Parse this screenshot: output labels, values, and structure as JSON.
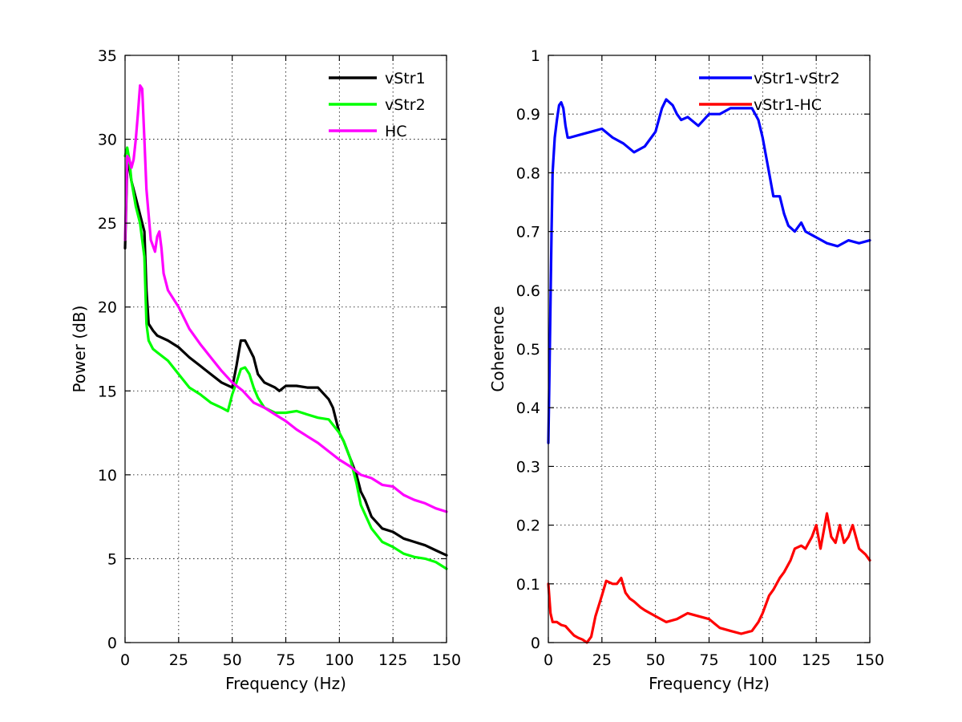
{
  "colors": {
    "vStr1": "#000000",
    "vStr2": "#00ff00",
    "HC": "#ff00ff",
    "vStr1-vStr2": "#0000ff",
    "vStr1-HC": "#ff0000"
  },
  "chart_data": [
    {
      "type": "line",
      "title": "",
      "xlabel": "Frequency (Hz)",
      "ylabel": "Power (dB)",
      "xlim": [
        0,
        150
      ],
      "ylim": [
        0,
        35
      ],
      "xticks": [
        0,
        25,
        50,
        75,
        100,
        125,
        150
      ],
      "yticks": [
        0,
        5,
        10,
        15,
        20,
        25,
        30,
        35
      ],
      "grid": true,
      "legend_position": "top-right",
      "series": [
        {
          "name": "vStr1",
          "color": "#000000",
          "x": [
            0,
            1,
            2,
            3,
            5,
            7,
            9,
            10,
            11,
            13,
            15,
            20,
            25,
            30,
            35,
            40,
            45,
            50,
            52,
            54,
            56,
            58,
            60,
            62,
            65,
            70,
            72,
            75,
            80,
            85,
            90,
            95,
            97,
            100,
            102,
            105,
            108,
            110,
            112,
            115,
            120,
            125,
            130,
            135,
            140,
            145,
            150
          ],
          "y": [
            23.5,
            28.5,
            28.3,
            27.5,
            26.5,
            25.5,
            24.5,
            21,
            19,
            18.6,
            18.3,
            18,
            17.6,
            17,
            16.5,
            16,
            15.5,
            15.2,
            16.5,
            18,
            18,
            17.5,
            17,
            16,
            15.5,
            15.2,
            15,
            15.3,
            15.3,
            15.2,
            15.2,
            14.5,
            14,
            12.5,
            12,
            11,
            10,
            9,
            8.5,
            7.5,
            6.8,
            6.6,
            6.2,
            6,
            5.8,
            5.5,
            5.2
          ]
        },
        {
          "name": "vStr2",
          "color": "#00ff00",
          "x": [
            0,
            1,
            2,
            3,
            5,
            7,
            9,
            10,
            11,
            13,
            15,
            20,
            25,
            30,
            35,
            40,
            45,
            48,
            50,
            52,
            54,
            56,
            58,
            60,
            62,
            65,
            70,
            75,
            80,
            85,
            90,
            95,
            100,
            102,
            105,
            108,
            110,
            115,
            120,
            125,
            130,
            135,
            140,
            145,
            150
          ],
          "y": [
            29,
            29.5,
            28.8,
            27.5,
            26,
            25,
            23,
            19,
            18,
            17.5,
            17.3,
            16.8,
            16,
            15.2,
            14.8,
            14.3,
            14,
            13.8,
            14.8,
            15.5,
            16.3,
            16.4,
            16,
            15.2,
            14.6,
            14,
            13.7,
            13.7,
            13.8,
            13.6,
            13.4,
            13.3,
            12.5,
            12,
            11,
            9.5,
            8.2,
            6.8,
            6,
            5.7,
            5.3,
            5.1,
            5,
            4.8,
            4.4
          ]
        },
        {
          "name": "HC",
          "color": "#ff00ff",
          "x": [
            0,
            1,
            2,
            3,
            4,
            5,
            6,
            7,
            8,
            9,
            10,
            12,
            14,
            15,
            16,
            17,
            18,
            20,
            25,
            30,
            35,
            40,
            45,
            50,
            55,
            60,
            65,
            70,
            75,
            80,
            85,
            90,
            95,
            100,
            105,
            110,
            115,
            120,
            125,
            130,
            135,
            140,
            145,
            150
          ],
          "y": [
            24,
            29,
            28.8,
            28.3,
            28.8,
            30,
            31.5,
            33.2,
            33,
            30,
            27,
            24,
            23.3,
            24.2,
            24.5,
            23.5,
            22,
            21,
            20,
            18.7,
            17.8,
            17,
            16.2,
            15.5,
            15,
            14.3,
            14,
            13.6,
            13.2,
            12.7,
            12.3,
            11.9,
            11.4,
            10.9,
            10.5,
            10,
            9.8,
            9.4,
            9.3,
            8.8,
            8.5,
            8.3,
            8,
            7.8
          ]
        }
      ]
    },
    {
      "type": "line",
      "title": "",
      "xlabel": "Frequency (Hz)",
      "ylabel": "Coherence",
      "xlim": [
        0,
        150
      ],
      "ylim": [
        0,
        1
      ],
      "xticks": [
        0,
        25,
        50,
        75,
        100,
        125,
        150
      ],
      "yticks": [
        0,
        0.1,
        0.2,
        0.3,
        0.4,
        0.5,
        0.6,
        0.7,
        0.8,
        0.9,
        1
      ],
      "grid": true,
      "legend_position": "top-right",
      "series": [
        {
          "name": "vStr1-vStr2",
          "color": "#0000ff",
          "x": [
            0,
            0.5,
            1,
            1.5,
            2,
            3,
            4,
            5,
            6,
            7,
            8,
            9,
            10,
            15,
            20,
            25,
            30,
            35,
            40,
            45,
            50,
            53,
            55,
            58,
            60,
            62,
            65,
            70,
            75,
            80,
            85,
            90,
            95,
            98,
            100,
            103,
            105,
            108,
            110,
            112,
            115,
            118,
            120,
            125,
            130,
            135,
            140,
            145,
            150
          ],
          "y": [
            0.34,
            0.45,
            0.58,
            0.7,
            0.8,
            0.86,
            0.89,
            0.915,
            0.92,
            0.91,
            0.88,
            0.86,
            0.86,
            0.865,
            0.87,
            0.875,
            0.86,
            0.85,
            0.835,
            0.845,
            0.87,
            0.91,
            0.925,
            0.915,
            0.9,
            0.89,
            0.895,
            0.88,
            0.9,
            0.9,
            0.91,
            0.91,
            0.91,
            0.89,
            0.86,
            0.8,
            0.76,
            0.76,
            0.73,
            0.71,
            0.7,
            0.715,
            0.7,
            0.69,
            0.68,
            0.675,
            0.685,
            0.68,
            0.685
          ]
        },
        {
          "name": "vStr1-HC",
          "color": "#ff0000",
          "x": [
            0,
            1,
            2,
            4,
            6,
            8,
            10,
            12,
            14,
            16,
            18,
            20,
            22,
            25,
            27,
            30,
            32,
            34,
            36,
            38,
            40,
            43,
            45,
            50,
            55,
            60,
            65,
            70,
            75,
            80,
            85,
            90,
            95,
            98,
            100,
            103,
            105,
            108,
            110,
            113,
            115,
            118,
            120,
            123,
            125,
            127,
            130,
            132,
            134,
            136,
            138,
            140,
            142,
            145,
            148,
            150
          ],
          "y": [
            0.1,
            0.05,
            0.035,
            0.035,
            0.03,
            0.028,
            0.02,
            0.012,
            0.008,
            0.005,
            0.0,
            0.01,
            0.045,
            0.08,
            0.105,
            0.1,
            0.1,
            0.11,
            0.085,
            0.075,
            0.07,
            0.06,
            0.055,
            0.045,
            0.035,
            0.04,
            0.05,
            0.045,
            0.04,
            0.025,
            0.02,
            0.015,
            0.02,
            0.035,
            0.05,
            0.08,
            0.09,
            0.11,
            0.12,
            0.14,
            0.16,
            0.165,
            0.16,
            0.18,
            0.2,
            0.16,
            0.22,
            0.18,
            0.17,
            0.2,
            0.17,
            0.18,
            0.2,
            0.16,
            0.15,
            0.14
          ]
        }
      ]
    }
  ]
}
